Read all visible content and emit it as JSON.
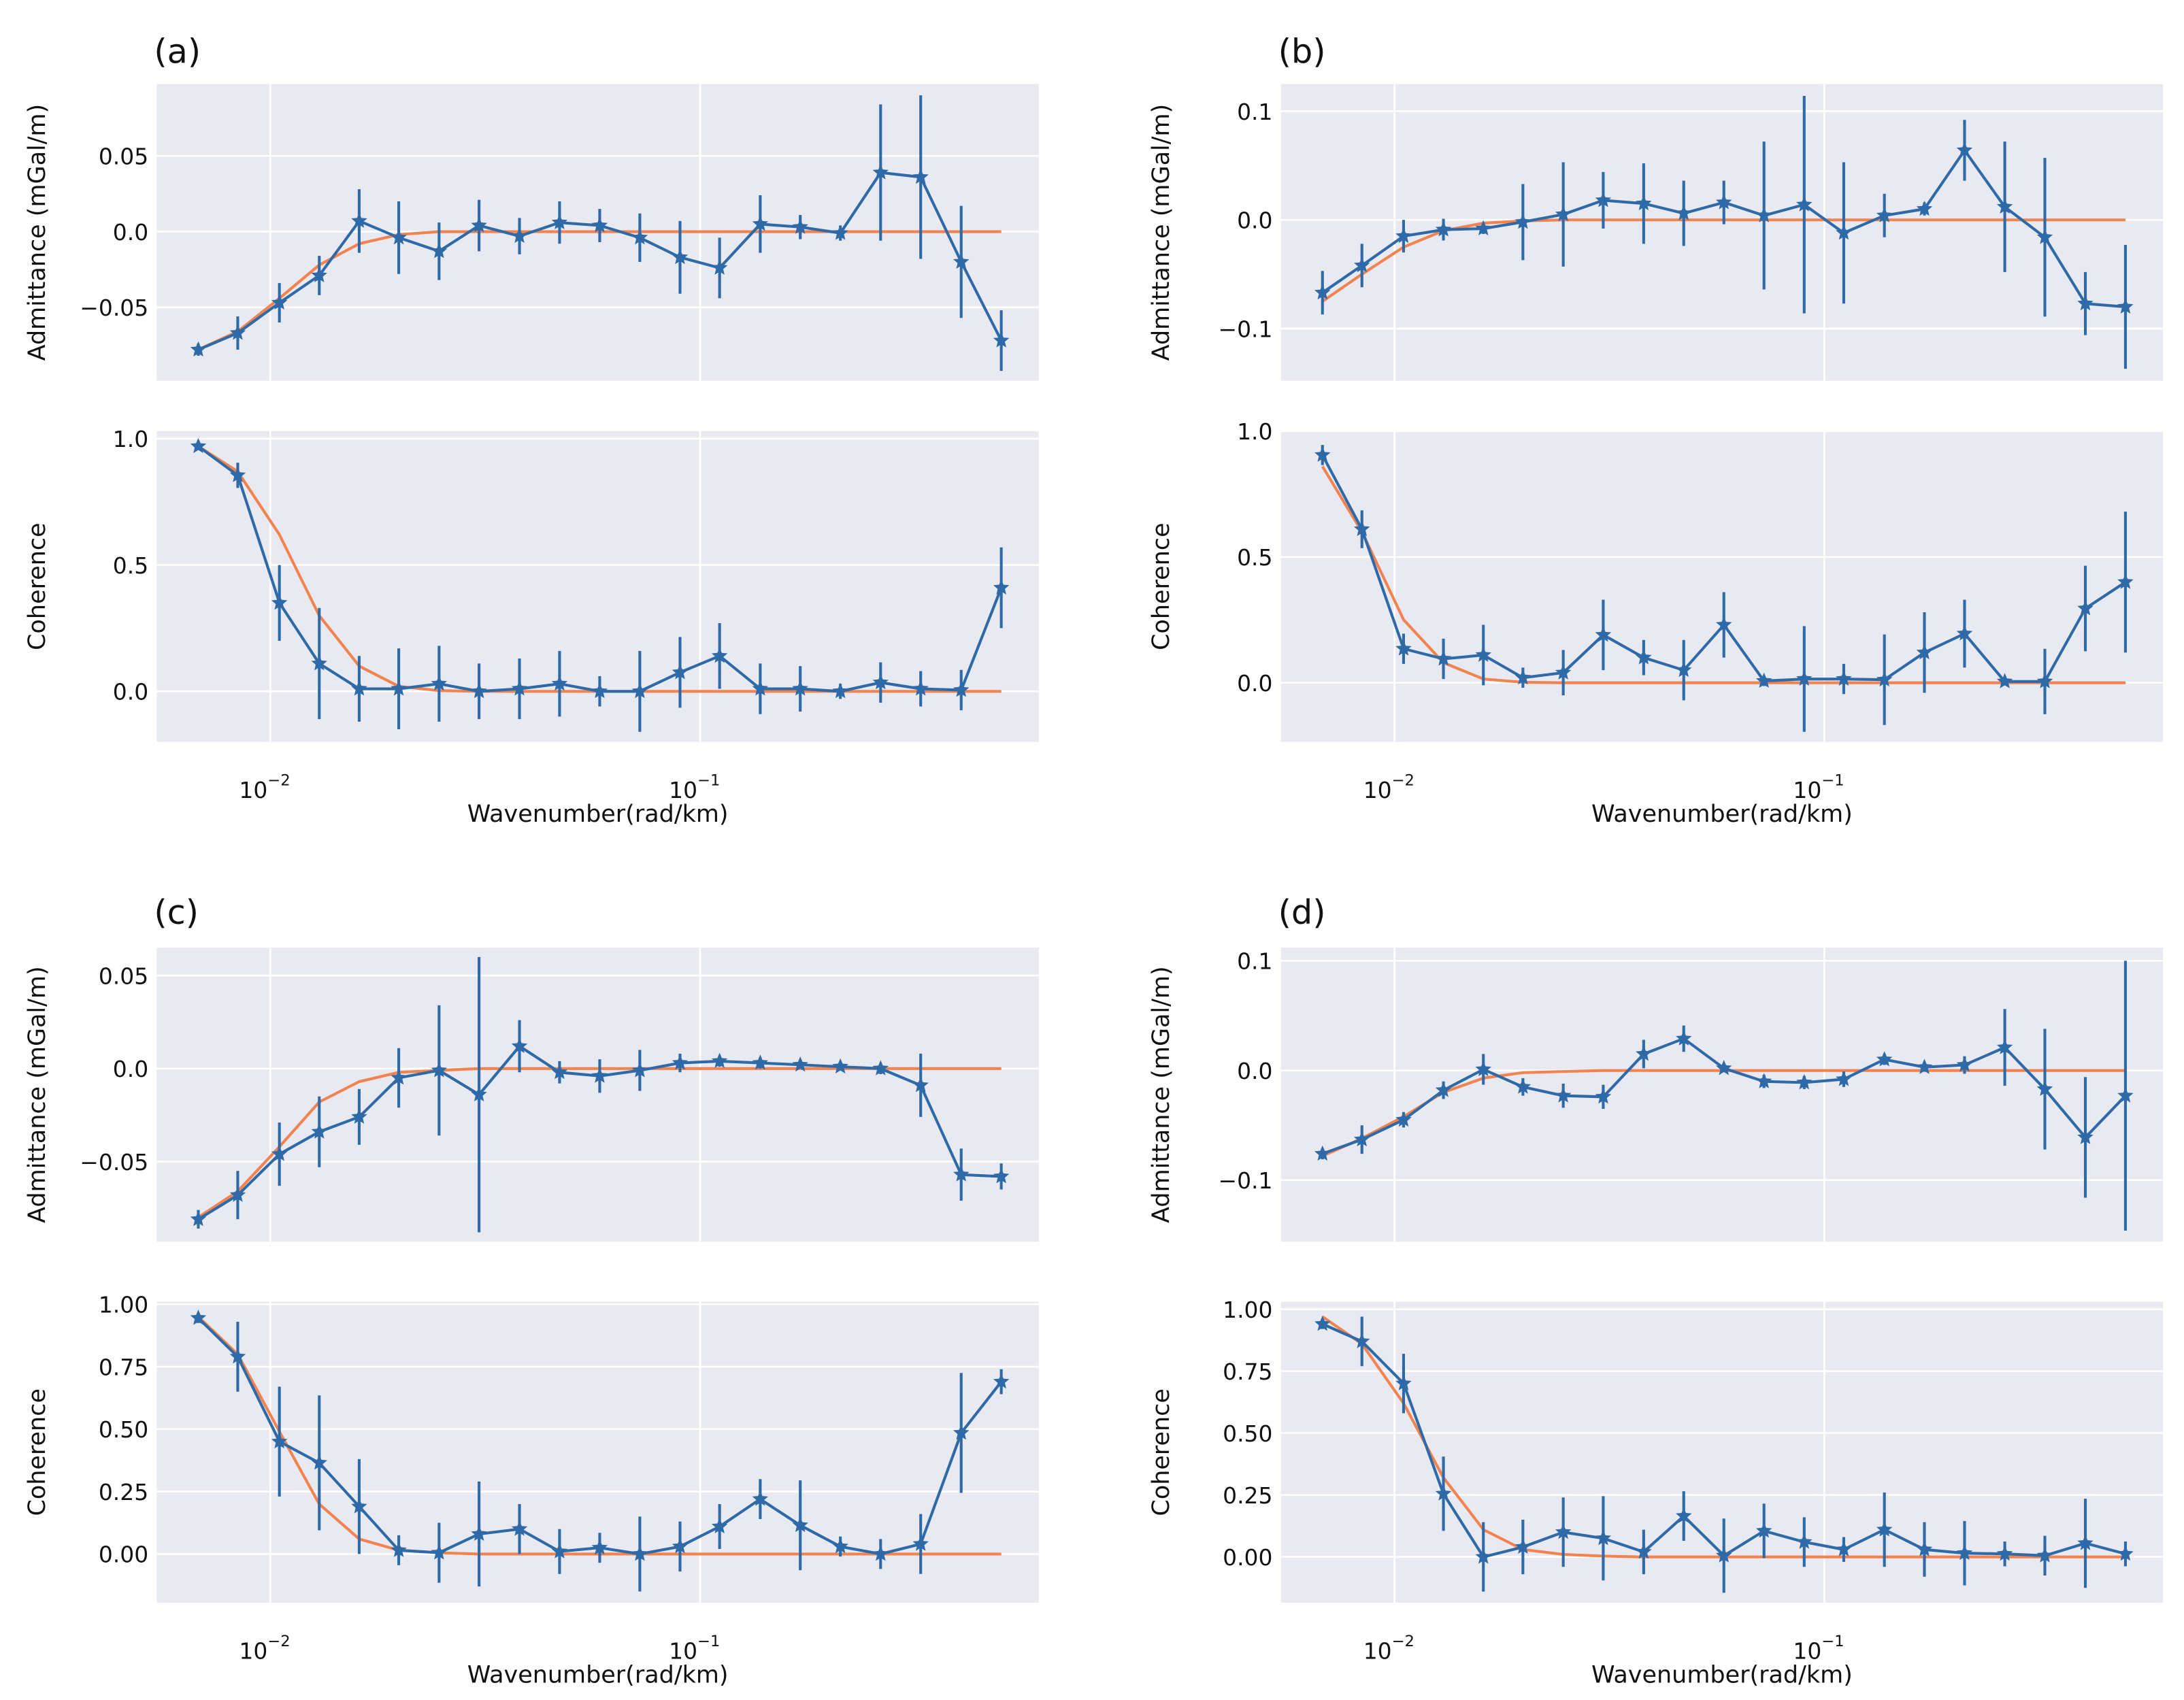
{
  "colors": {
    "background": "#E8E9F1",
    "grid": "#FFFFFF",
    "observed": "#2F6AA8",
    "model": "#F2834F"
  },
  "chart_data": [
    {
      "panel_label": "(a)",
      "xlabel": "Wavenumber(rad/km)",
      "xscale": "log",
      "xticks": [
        {
          "value": 0.01,
          "base": "10",
          "exp": "−2"
        },
        {
          "value": 0.1,
          "base": "10",
          "exp": "−1"
        }
      ],
      "x": [
        0.0068,
        0.0084,
        0.0105,
        0.013,
        0.0161,
        0.0199,
        0.0247,
        0.0306,
        0.038,
        0.0471,
        0.0584,
        0.0724,
        0.0898,
        0.111,
        0.138,
        0.171,
        0.212,
        0.263,
        0.326,
        0.405,
        0.502
      ],
      "subplots": [
        {
          "type": "line",
          "ylabel": "Admittance (mGal/m)",
          "ylim": [
            -0.0985,
            0.0975
          ],
          "yticks": [
            {
              "value": -0.05,
              "label": "−0.05"
            },
            {
              "value": 0,
              "label": "0.0"
            },
            {
              "value": 0.05,
              "label": "0.05"
            }
          ],
          "observed": [
            -0.078,
            -0.067,
            -0.047,
            -0.029,
            0.007,
            -0.004,
            -0.013,
            0.004,
            -0.003,
            0.006,
            0.004,
            -0.004,
            -0.017,
            -0.024,
            0.005,
            0.003,
            -0.001,
            0.039,
            0.036,
            -0.02,
            -0.072
          ],
          "errors": [
            0.004,
            0.011,
            0.013,
            0.013,
            0.021,
            0.024,
            0.019,
            0.017,
            0.012,
            0.014,
            0.011,
            0.016,
            0.024,
            0.02,
            0.019,
            0.008,
            0.005,
            0.045,
            0.054,
            0.037,
            0.02
          ],
          "model": [
            -0.078,
            -0.066,
            -0.044,
            -0.022,
            -0.008,
            -0.002,
            0,
            0,
            0,
            0,
            0,
            0,
            0,
            0,
            0,
            0,
            0,
            0,
            0,
            0,
            0
          ]
        },
        {
          "type": "line",
          "ylabel": "Coherence",
          "ylim": [
            -0.2,
            1.03
          ],
          "yticks": [
            {
              "value": 0,
              "label": "0.0"
            },
            {
              "value": 0.5,
              "label": "0.5"
            },
            {
              "value": 1.0,
              "label": "1.0"
            }
          ],
          "observed": [
            0.97,
            0.855,
            0.35,
            0.11,
            0.01,
            0.01,
            0.03,
            0.0,
            0.01,
            0.03,
            0.0,
            0.0,
            0.075,
            0.14,
            0.01,
            0.01,
            0.0,
            0.035,
            0.01,
            0.005,
            0.41
          ],
          "errors": [
            0.01,
            0.05,
            0.15,
            0.22,
            0.13,
            0.16,
            0.15,
            0.11,
            0.12,
            0.13,
            0.06,
            0.16,
            0.14,
            0.13,
            0.1,
            0.09,
            0.03,
            0.08,
            0.07,
            0.08,
            0.16
          ],
          "model": [
            0.97,
            0.87,
            0.62,
            0.3,
            0.1,
            0.02,
            0.003,
            0,
            0,
            0,
            0,
            0,
            0,
            0,
            0,
            0,
            0,
            0,
            0,
            0,
            0
          ]
        }
      ]
    },
    {
      "panel_label": "(b)",
      "xlabel": "Wavenumber(rad/km)",
      "xscale": "log",
      "xticks": [
        {
          "value": 0.01,
          "base": "10",
          "exp": "−2"
        },
        {
          "value": 0.1,
          "base": "10",
          "exp": "−1"
        }
      ],
      "x": [
        0.0068,
        0.0084,
        0.0105,
        0.013,
        0.0161,
        0.0199,
        0.0247,
        0.0306,
        0.038,
        0.0471,
        0.0584,
        0.0724,
        0.0898,
        0.111,
        0.138,
        0.171,
        0.212,
        0.263,
        0.326,
        0.405,
        0.502
      ],
      "subplots": [
        {
          "type": "line",
          "ylabel": "Admittance (mGal/m)",
          "ylim": [
            -0.148,
            0.125
          ],
          "yticks": [
            {
              "value": -0.1,
              "label": "−0.1"
            },
            {
              "value": 0,
              "label": "0.0"
            },
            {
              "value": 0.1,
              "label": "0.1"
            }
          ],
          "observed": [
            -0.067,
            -0.042,
            -0.015,
            -0.009,
            -0.008,
            -0.002,
            0.005,
            0.018,
            0.015,
            0.006,
            0.016,
            0.004,
            0.014,
            -0.012,
            0.004,
            0.01,
            0.064,
            0.012,
            -0.016,
            -0.077,
            -0.08
          ],
          "errors": [
            0.02,
            0.02,
            0.015,
            0.01,
            0.005,
            0.035,
            0.048,
            0.026,
            0.037,
            0.03,
            0.02,
            0.068,
            0.1,
            0.065,
            0.02,
            0.006,
            0.028,
            0.06,
            0.073,
            0.029,
            0.057
          ],
          "model": [
            -0.075,
            -0.05,
            -0.025,
            -0.01,
            -0.003,
            -0.001,
            0,
            0,
            0,
            0,
            0,
            0,
            0,
            0,
            0,
            0,
            0,
            0,
            0,
            0,
            0
          ]
        },
        {
          "type": "line",
          "ylabel": "Coherence",
          "ylim": [
            -0.235,
            1.0
          ],
          "yticks": [
            {
              "value": 0,
              "label": "0.0"
            },
            {
              "value": 0.5,
              "label": "0.5"
            },
            {
              "value": 1.0,
              "label": "1.0"
            }
          ],
          "observed": [
            0.905,
            0.61,
            0.135,
            0.095,
            0.11,
            0.02,
            0.04,
            0.19,
            0.1,
            0.05,
            0.23,
            0.007,
            0.015,
            0.015,
            0.012,
            0.12,
            0.195,
            0.005,
            0.005,
            0.295,
            0.4
          ],
          "errors": [
            0.04,
            0.075,
            0.06,
            0.08,
            0.12,
            0.04,
            0.09,
            0.14,
            0.07,
            0.12,
            0.13,
            0.02,
            0.21,
            0.06,
            0.18,
            0.16,
            0.135,
            0.01,
            0.13,
            0.17,
            0.28
          ],
          "model": [
            0.86,
            0.6,
            0.25,
            0.08,
            0.015,
            0.002,
            0,
            0,
            0,
            0,
            0,
            0,
            0,
            0,
            0,
            0,
            0,
            0,
            0,
            0,
            0
          ]
        }
      ]
    },
    {
      "panel_label": "(c)",
      "xlabel": "Wavenumber(rad/km)",
      "xscale": "log",
      "xticks": [
        {
          "value": 0.01,
          "base": "10",
          "exp": "−2"
        },
        {
          "value": 0.1,
          "base": "10",
          "exp": "−1"
        }
      ],
      "x": [
        0.0068,
        0.0084,
        0.0105,
        0.013,
        0.0161,
        0.0199,
        0.0247,
        0.0306,
        0.038,
        0.0471,
        0.0584,
        0.0724,
        0.0898,
        0.111,
        0.138,
        0.171,
        0.212,
        0.263,
        0.326,
        0.405,
        0.502
      ],
      "subplots": [
        {
          "type": "line",
          "ylabel": "Admittance (mGal/m)",
          "ylim": [
            -0.093,
            0.065
          ],
          "yticks": [
            {
              "value": -0.05,
              "label": "−0.05"
            },
            {
              "value": 0,
              "label": "0.0"
            },
            {
              "value": 0.05,
              "label": "0.05"
            }
          ],
          "observed": [
            -0.081,
            -0.068,
            -0.046,
            -0.034,
            -0.026,
            -0.005,
            -0.001,
            -0.014,
            0.012,
            -0.002,
            -0.004,
            -0.001,
            0.003,
            0.004,
            0.003,
            0.002,
            0.001,
            0.0,
            -0.009,
            -0.057,
            -0.058
          ],
          "errors": [
            0.005,
            0.013,
            0.017,
            0.019,
            0.015,
            0.016,
            0.035,
            0.074,
            0.014,
            0.006,
            0.009,
            0.011,
            0.005,
            0.003,
            0.003,
            0.002,
            0.002,
            0.003,
            0.017,
            0.014,
            0.007
          ],
          "model": [
            -0.08,
            -0.066,
            -0.042,
            -0.018,
            -0.007,
            -0.002,
            -0.001,
            0,
            0,
            0,
            0,
            0,
            0,
            0,
            0,
            0,
            0,
            0,
            0,
            0,
            0
          ]
        },
        {
          "type": "line",
          "ylabel": "Coherence",
          "ylim": [
            -0.195,
            1.01
          ],
          "yticks": [
            {
              "value": 0,
              "label": "0.00"
            },
            {
              "value": 0.25,
              "label": "0.25"
            },
            {
              "value": 0.5,
              "label": "0.50"
            },
            {
              "value": 0.75,
              "label": "0.75"
            },
            {
              "value": 1.0,
              "label": "1.00"
            }
          ],
          "observed": [
            0.945,
            0.79,
            0.45,
            0.365,
            0.19,
            0.015,
            0.005,
            0.08,
            0.1,
            0.01,
            0.025,
            0.0,
            0.03,
            0.11,
            0.22,
            0.115,
            0.03,
            0.0,
            0.04,
            0.485,
            0.69
          ],
          "errors": [
            0.02,
            0.14,
            0.22,
            0.27,
            0.19,
            0.06,
            0.12,
            0.21,
            0.1,
            0.09,
            0.06,
            0.15,
            0.1,
            0.09,
            0.08,
            0.18,
            0.04,
            0.06,
            0.12,
            0.24,
            0.05
          ],
          "model": [
            0.95,
            0.8,
            0.49,
            0.2,
            0.06,
            0.015,
            0.005,
            0,
            0,
            0,
            0,
            0,
            0,
            0,
            0,
            0,
            0,
            0,
            0,
            0,
            0
          ]
        }
      ]
    },
    {
      "panel_label": "(d)",
      "xlabel": "Wavenumber(rad/km)",
      "xscale": "log",
      "xticks": [
        {
          "value": 0.01,
          "base": "10",
          "exp": "−2"
        },
        {
          "value": 0.1,
          "base": "10",
          "exp": "−1"
        }
      ],
      "x": [
        0.0068,
        0.0084,
        0.0105,
        0.013,
        0.0161,
        0.0199,
        0.0247,
        0.0306,
        0.038,
        0.0471,
        0.0584,
        0.0724,
        0.0898,
        0.111,
        0.138,
        0.171,
        0.212,
        0.263,
        0.326,
        0.405,
        0.502
      ],
      "subplots": [
        {
          "type": "line",
          "ylabel": "Admittance (mGal/m)",
          "ylim": [
            -0.156,
            0.112
          ],
          "yticks": [
            {
              "value": -0.1,
              "label": "−0.1"
            },
            {
              "value": 0,
              "label": "0.0"
            },
            {
              "value": 0.1,
              "label": "0.1"
            }
          ],
          "observed": [
            -0.076,
            -0.063,
            -0.045,
            -0.018,
            0.001,
            -0.015,
            -0.023,
            -0.024,
            0.015,
            0.029,
            0.002,
            -0.01,
            -0.011,
            -0.008,
            0.01,
            0.003,
            0.005,
            0.021,
            -0.017,
            -0.061,
            -0.023
          ],
          "errors": [
            0.005,
            0.013,
            0.007,
            0.008,
            0.014,
            0.008,
            0.011,
            0.011,
            0.013,
            0.012,
            0.003,
            0.006,
            0.006,
            0.007,
            0.005,
            0.004,
            0.008,
            0.035,
            0.055,
            0.055,
            0.123
          ],
          "model": [
            -0.078,
            -0.062,
            -0.042,
            -0.02,
            -0.007,
            -0.002,
            -0.001,
            0,
            0,
            0,
            0,
            0,
            0,
            0,
            0,
            0,
            0,
            0,
            0,
            0,
            0
          ]
        },
        {
          "type": "line",
          "ylabel": "Coherence",
          "ylim": [
            -0.185,
            1.03
          ],
          "yticks": [
            {
              "value": 0,
              "label": "0.00"
            },
            {
              "value": 0.25,
              "label": "0.25"
            },
            {
              "value": 0.5,
              "label": "0.50"
            },
            {
              "value": 0.75,
              "label": "0.75"
            },
            {
              "value": 1.0,
              "label": "1.00"
            }
          ],
          "observed": [
            0.94,
            0.87,
            0.7,
            0.255,
            0.0,
            0.04,
            0.1,
            0.075,
            0.02,
            0.165,
            0.005,
            0.105,
            0.06,
            0.03,
            0.11,
            0.03,
            0.015,
            0.012,
            0.005,
            0.055,
            0.012
          ],
          "errors": [
            0.02,
            0.1,
            0.12,
            0.15,
            0.14,
            0.11,
            0.14,
            0.17,
            0.09,
            0.1,
            0.15,
            0.11,
            0.1,
            0.05,
            0.15,
            0.11,
            0.13,
            0.05,
            0.08,
            0.18,
            0.05
          ],
          "model": [
            0.97,
            0.86,
            0.62,
            0.32,
            0.11,
            0.03,
            0.01,
            0.003,
            0,
            0,
            0,
            0,
            0,
            0,
            0,
            0,
            0,
            0,
            0,
            0,
            0
          ]
        }
      ]
    }
  ]
}
